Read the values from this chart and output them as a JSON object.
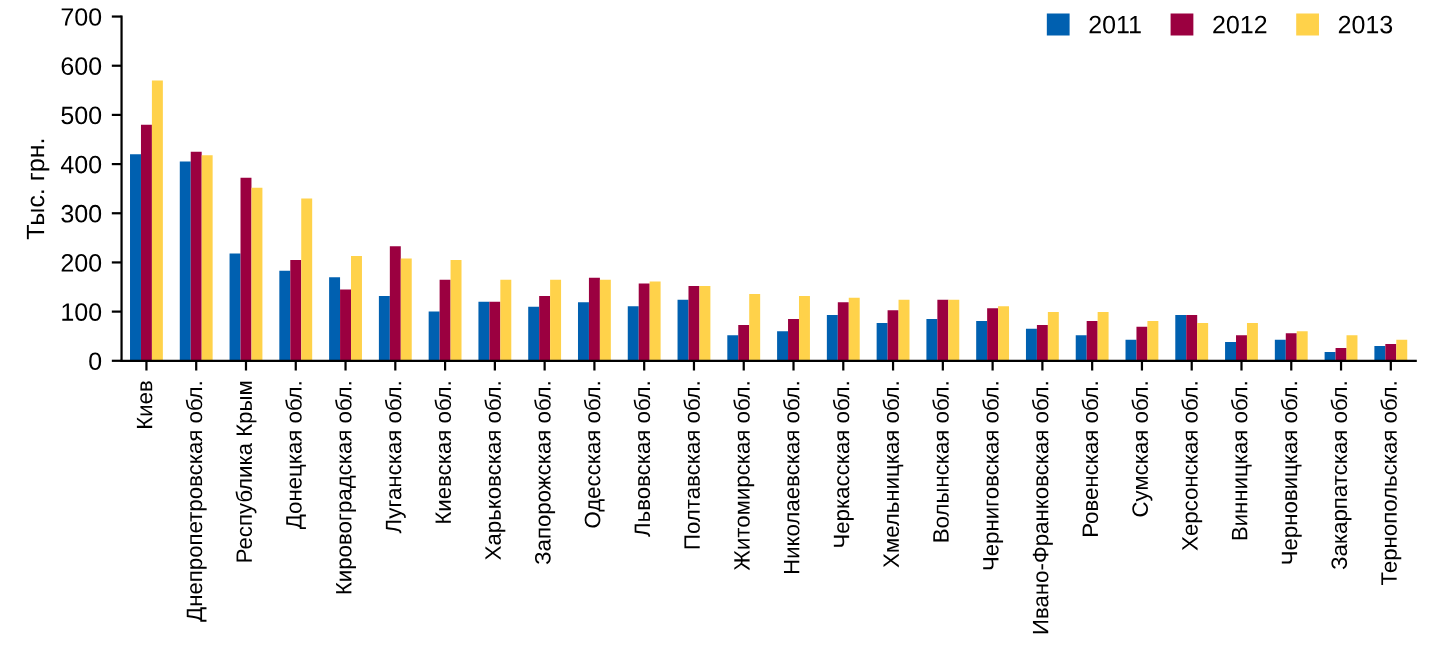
{
  "chart_data": {
    "type": "bar",
    "ylabel": "Тыс. грн.",
    "categories": [
      "Киев",
      "Днепропетровская обл.",
      "Республика Крым",
      "Донецкая обл.",
      "Кировоградская обл.",
      "Луганская обл.",
      "Киевская обл.",
      "Харьковская обл.",
      "Запорожская обл.",
      "Одесская обл.",
      "Львовская обл.",
      "Полтавская обл.",
      "Житомирская обл.",
      "Николаевская обл.",
      "Черкасская обл.",
      "Хмельницкая обл.",
      "Волынская обл.",
      "Черниговская обл.",
      "Ивано-Франковская обл.",
      "Ровенская обл.",
      "Сумская обл.",
      "Херсонская обл.",
      "Винницкая обл.",
      "Черновицкая обл.",
      "Закарпатская обл.",
      "Тернопольская обл."
    ],
    "series": [
      {
        "name": "2011",
        "color": "#0060b0",
        "values": [
          420,
          405,
          218,
          183,
          170,
          132,
          100,
          120,
          110,
          119,
          111,
          124,
          52,
          60,
          93,
          77,
          85,
          81,
          65,
          52,
          43,
          93,
          38,
          43,
          18,
          30
        ]
      },
      {
        "name": "2012",
        "color": "#9b0040",
        "values": [
          480,
          425,
          372,
          205,
          145,
          233,
          165,
          120,
          132,
          169,
          157,
          152,
          73,
          85,
          119,
          103,
          124,
          107,
          73,
          81,
          69,
          93,
          52,
          56,
          26,
          34
        ]
      },
      {
        "name": "2013",
        "color": "#ffd24a",
        "values": [
          570,
          418,
          352,
          330,
          213,
          208,
          205,
          165,
          165,
          165,
          161,
          152,
          136,
          132,
          128,
          124,
          124,
          111,
          99,
          99,
          81,
          77,
          77,
          60,
          52,
          43
        ]
      }
    ],
    "ylim": [
      0,
      700
    ],
    "yticks": [
      0,
      100,
      200,
      300,
      400,
      500,
      600,
      700
    ],
    "grid": false,
    "legend": "top right"
  }
}
